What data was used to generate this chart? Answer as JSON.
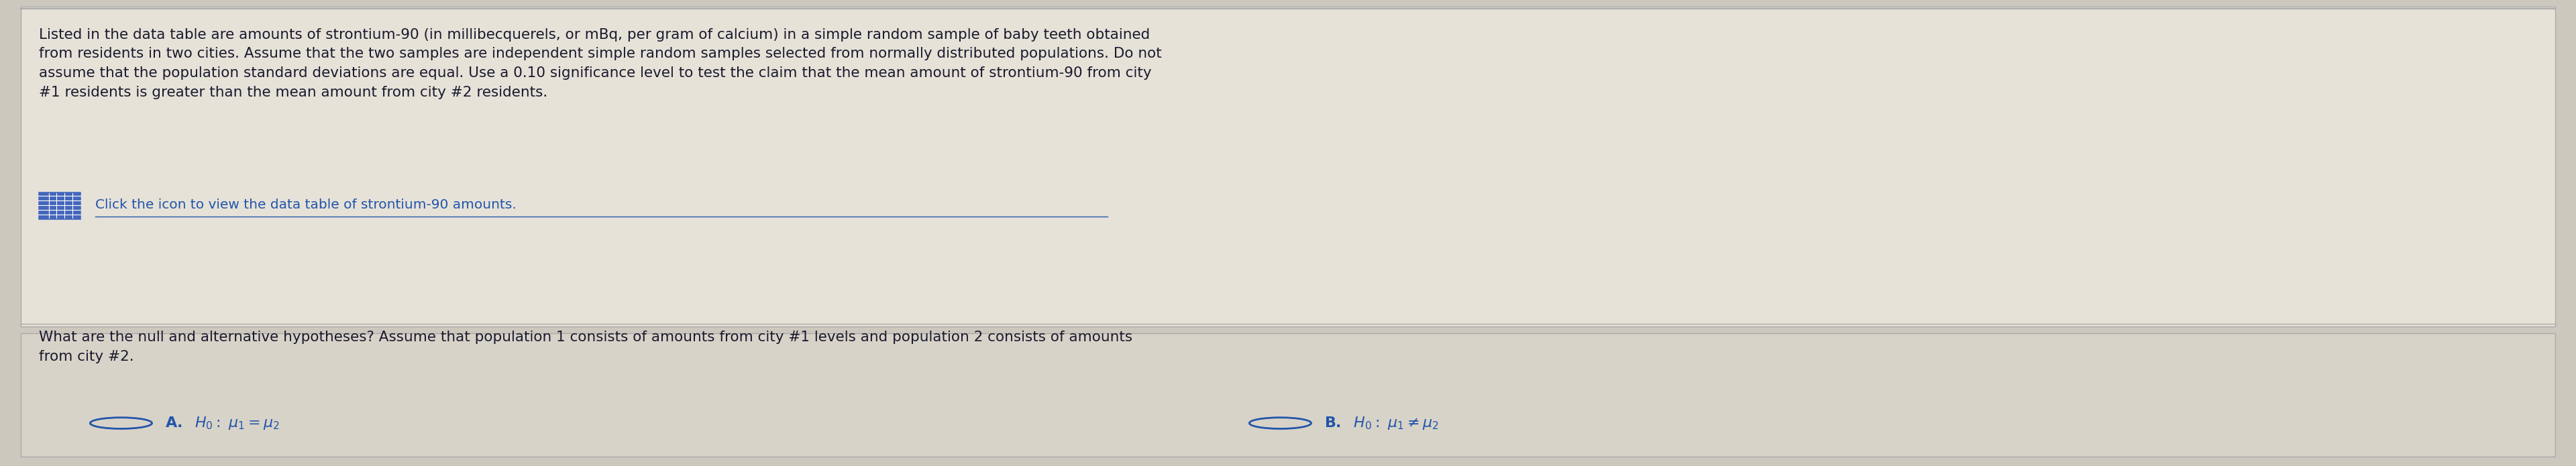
{
  "bg_color": "#cdc8be",
  "top_section_bg": "#e6e2d8",
  "bottom_section_bg": "#d8d3c8",
  "border_color": "#aaaaaa",
  "text_color": "#1a1a2e",
  "blue_color": "#2255aa",
  "paragraph1": "Listed in the data table are amounts of strontium-90 (in millibecquerels, or mBq, per gram of calcium) in a simple random sample of baby teeth obtained\nfrom residents in two cities. Assume that the two samples are independent simple random samples selected from normally distributed populations. Do not\nassume that the population standard deviations are equal. Use a 0.10 significance level to test the claim that the mean amount of strontium-90 from city\n#1 residents is greater than the mean amount from city #2 residents.",
  "icon_line": "Click the icon to view the data table of strontium-90 amounts.",
  "paragraph2": "What are the null and alternative hypotheses? Assume that population 1 consists of amounts from city #1 levels and population 2 consists of amounts\nfrom city #2.",
  "font_size_body": 15.5,
  "font_size_options": 16,
  "font_size_icon": 14.5,
  "icon_box_color": "#4466bb",
  "icon_border_color": "#5577cc"
}
